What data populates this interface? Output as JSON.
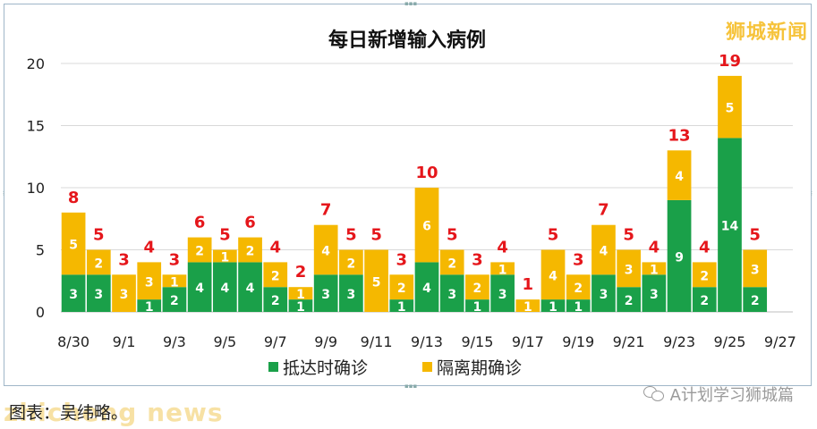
{
  "watermark": "狮城新闻",
  "footer_caption": "图表：吴纬略。",
  "source_watermark": "zhicheng news",
  "wechat_account": "A计划学习狮城篇",
  "colors": {
    "arrival": "#1aa049",
    "quarantine": "#f5b800",
    "total_label": "#e5161b",
    "grid": "#d9d9d9"
  },
  "chart_data": {
    "type": "bar",
    "title": "每日新增输入病例",
    "ylim": [
      0,
      20
    ],
    "yticks": [
      "0",
      "5",
      "10",
      "15",
      "20"
    ],
    "grid": true,
    "legend_position": "bottom",
    "categories": [
      "8/30",
      "8/31",
      "9/1",
      "9/2",
      "9/3",
      "9/4",
      "9/5",
      "9/6",
      "9/7",
      "9/8",
      "9/9",
      "9/10",
      "9/11",
      "9/12",
      "9/13",
      "9/14",
      "9/15",
      "9/16",
      "9/17",
      "9/18",
      "9/19",
      "9/20",
      "9/21",
      "9/22",
      "9/23",
      "9/24",
      "9/25",
      "9/26",
      "9/27"
    ],
    "xtick_labels": [
      "8/30",
      "9/1",
      "9/3",
      "9/5",
      "9/7",
      "9/9",
      "9/11",
      "9/13",
      "9/15",
      "9/17",
      "9/19",
      "9/21",
      "9/23",
      "9/25",
      "9/27"
    ],
    "series": [
      {
        "name": "抵达时确诊",
        "values": [
          3,
          3,
          0,
          1,
          2,
          4,
          4,
          4,
          2,
          1,
          3,
          3,
          0,
          1,
          4,
          3,
          1,
          3,
          0,
          1,
          1,
          3,
          2,
          3,
          9,
          2,
          14,
          2,
          0
        ]
      },
      {
        "name": "隔离期确诊",
        "values": [
          5,
          2,
          3,
          3,
          1,
          2,
          1,
          2,
          2,
          1,
          4,
          2,
          5,
          2,
          6,
          2,
          2,
          1,
          1,
          4,
          2,
          4,
          3,
          1,
          4,
          2,
          5,
          3,
          0
        ]
      }
    ],
    "totals": [
      8,
      5,
      3,
      4,
      3,
      6,
      5,
      6,
      4,
      2,
      7,
      5,
      5,
      3,
      10,
      5,
      3,
      4,
      1,
      5,
      3,
      7,
      5,
      4,
      13,
      4,
      19,
      5,
      null
    ]
  }
}
